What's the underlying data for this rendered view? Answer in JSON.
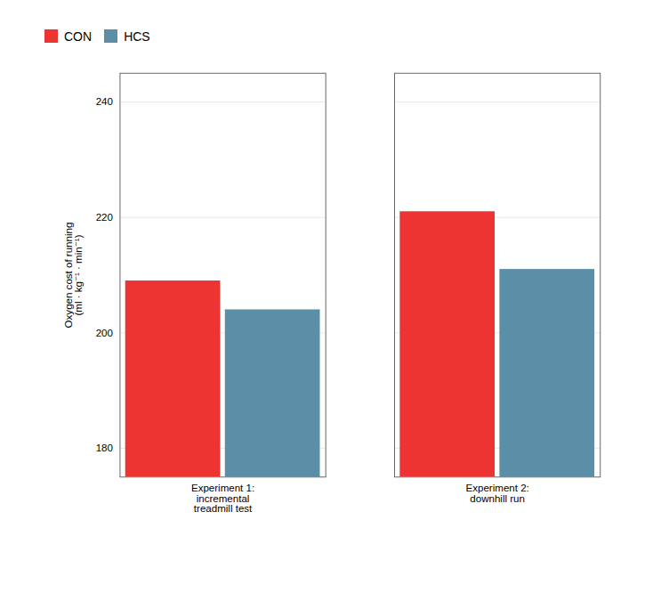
{
  "chart_data": {
    "type": "bar",
    "categories": [
      "Experiment 1:\nincremental\ntreadmill test",
      "Experiment 2:\ndownhill run"
    ],
    "series": [
      {
        "name": "CON",
        "color": "#ee3333",
        "values": [
          209,
          221
        ]
      },
      {
        "name": "HCS",
        "color": "#5b8fa8",
        "values": [
          204,
          211
        ]
      }
    ],
    "ylabel": "Oxygen cost of running\n(ml · kg⁻¹ · min⁻¹)",
    "ylim": [
      175,
      245
    ],
    "yticks": [
      180,
      200,
      220,
      240
    ],
    "grid": true,
    "legend": "top"
  }
}
